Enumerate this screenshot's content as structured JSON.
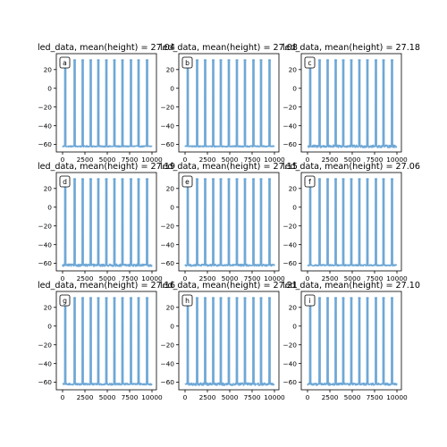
{
  "chart_data": [
    {
      "type": "line",
      "title": "led_data, mean(height) = 27.04",
      "panel_label": "a",
      "series_color": "#6fa8d6",
      "baseline": -62,
      "peak": 30,
      "noise": 0.6,
      "pulse_x": [
        300,
        1350,
        2250,
        3150,
        4000,
        4900,
        5800,
        6700,
        7650,
        8500,
        9450
      ],
      "xlim": [
        -700,
        10500
      ],
      "ylim": [
        -68,
        37
      ],
      "xticks": [
        0,
        2500,
        5000,
        7500,
        10000
      ],
      "yticks": [
        20,
        0,
        -20,
        -40,
        -60
      ],
      "grid": false,
      "xlabel": "",
      "ylabel": ""
    },
    {
      "type": "line",
      "title": "led_data, mean(height) = 27.08",
      "panel_label": "b",
      "series_color": "#6fa8d6",
      "baseline": -62,
      "peak": 30,
      "noise": 0.6,
      "pulse_x": [
        300,
        1350,
        2250,
        3150,
        4000,
        4900,
        5800,
        6700,
        7650,
        8500,
        9450
      ],
      "xlim": [
        -700,
        10500
      ],
      "ylim": [
        -68,
        37
      ],
      "xticks": [
        0,
        2500,
        5000,
        7500,
        10000
      ],
      "yticks": [
        20,
        0,
        -20,
        -40,
        -60
      ],
      "grid": false,
      "xlabel": "",
      "ylabel": ""
    },
    {
      "type": "line",
      "title": "led_data, mean(height) = 27.18",
      "panel_label": "c",
      "series_color": "#6fa8d6",
      "baseline": -62,
      "peak": 30,
      "noise": 1.3,
      "pulse_x": [
        300,
        1350,
        2250,
        3150,
        4000,
        4900,
        5800,
        6700,
        7650,
        8500,
        9450
      ],
      "xlim": [
        -700,
        10500
      ],
      "ylim": [
        -68,
        37
      ],
      "xticks": [
        0,
        2500,
        5000,
        7500,
        10000
      ],
      "yticks": [
        20,
        0,
        -20,
        -40,
        -60
      ],
      "grid": false,
      "xlabel": "",
      "ylabel": ""
    },
    {
      "type": "line",
      "title": "led_data, mean(height) = 27.19",
      "panel_label": "d",
      "series_color": "#6fa8d6",
      "baseline": -62,
      "peak": 30,
      "noise": 1.2,
      "pulse_x": [
        300,
        1350,
        2250,
        3150,
        4000,
        4900,
        5800,
        6700,
        7650,
        8500,
        9450
      ],
      "xlim": [
        -700,
        10500
      ],
      "ylim": [
        -68,
        37
      ],
      "xticks": [
        0,
        2500,
        5000,
        7500,
        10000
      ],
      "yticks": [
        20,
        0,
        -20,
        -40,
        -60
      ],
      "grid": false,
      "xlabel": "",
      "ylabel": ""
    },
    {
      "type": "line",
      "title": "led_data, mean(height) = 27.15",
      "panel_label": "e",
      "series_color": "#6fa8d6",
      "baseline": -62,
      "peak": 30,
      "noise": 1.0,
      "pulse_x": [
        300,
        1350,
        2250,
        3150,
        4000,
        4900,
        5800,
        6700,
        7650,
        8500,
        9450
      ],
      "xlim": [
        -700,
        10500
      ],
      "ylim": [
        -68,
        37
      ],
      "xticks": [
        0,
        2500,
        5000,
        7500,
        10000
      ],
      "yticks": [
        20,
        0,
        -20,
        -40,
        -60
      ],
      "grid": false,
      "xlabel": "",
      "ylabel": ""
    },
    {
      "type": "line",
      "title": "led_data, mean(height) = 27.06",
      "panel_label": "f",
      "series_color": "#6fa8d6",
      "baseline": -62,
      "peak": 30,
      "noise": 0.7,
      "pulse_x": [
        300,
        1350,
        2250,
        3150,
        4000,
        4900,
        5800,
        6700,
        7650,
        8500,
        9450
      ],
      "xlim": [
        -700,
        10500
      ],
      "ylim": [
        -68,
        37
      ],
      "xticks": [
        0,
        2500,
        5000,
        7500,
        10000
      ],
      "yticks": [
        20,
        0,
        -20,
        -40,
        -60
      ],
      "grid": false,
      "xlabel": "",
      "ylabel": ""
    },
    {
      "type": "line",
      "title": "led_data, mean(height) = 27.16",
      "panel_label": "g",
      "series_color": "#6fa8d6",
      "baseline": -62,
      "peak": 30,
      "noise": 0.9,
      "pulse_x": [
        300,
        1350,
        2250,
        3150,
        4000,
        4900,
        5800,
        6700,
        7650,
        8500,
        9450
      ],
      "xlim": [
        -700,
        10500
      ],
      "ylim": [
        -68,
        37
      ],
      "xticks": [
        0,
        2500,
        5000,
        7500,
        10000
      ],
      "yticks": [
        20,
        0,
        -20,
        -40,
        -60
      ],
      "grid": false,
      "xlabel": "",
      "ylabel": ""
    },
    {
      "type": "line",
      "title": "led_data, mean(height) = 27.21",
      "panel_label": "h",
      "series_color": "#6fa8d6",
      "baseline": -62,
      "peak": 30,
      "noise": 1.3,
      "pulse_x": [
        300,
        1350,
        2250,
        3150,
        4000,
        4900,
        5800,
        6700,
        7650,
        8500,
        9450
      ],
      "xlim": [
        -700,
        10500
      ],
      "ylim": [
        -68,
        37
      ],
      "xticks": [
        0,
        2500,
        5000,
        7500,
        10000
      ],
      "yticks": [
        20,
        0,
        -20,
        -40,
        -60
      ],
      "grid": false,
      "xlabel": "",
      "ylabel": ""
    },
    {
      "type": "line",
      "title": "led_data, mean(height) = 27.10",
      "panel_label": "i",
      "series_color": "#6fa8d6",
      "baseline": -62,
      "peak": 30,
      "noise": 1.1,
      "pulse_x": [
        300,
        1350,
        2250,
        3150,
        4000,
        4900,
        5800,
        6700,
        7650,
        8500,
        9450
      ],
      "xlim": [
        -700,
        10500
      ],
      "ylim": [
        -68,
        37
      ],
      "xticks": [
        0,
        2500,
        5000,
        7500,
        10000
      ],
      "yticks": [
        20,
        0,
        -20,
        -40,
        -60
      ],
      "grid": false,
      "xlabel": "",
      "ylabel": ""
    }
  ]
}
